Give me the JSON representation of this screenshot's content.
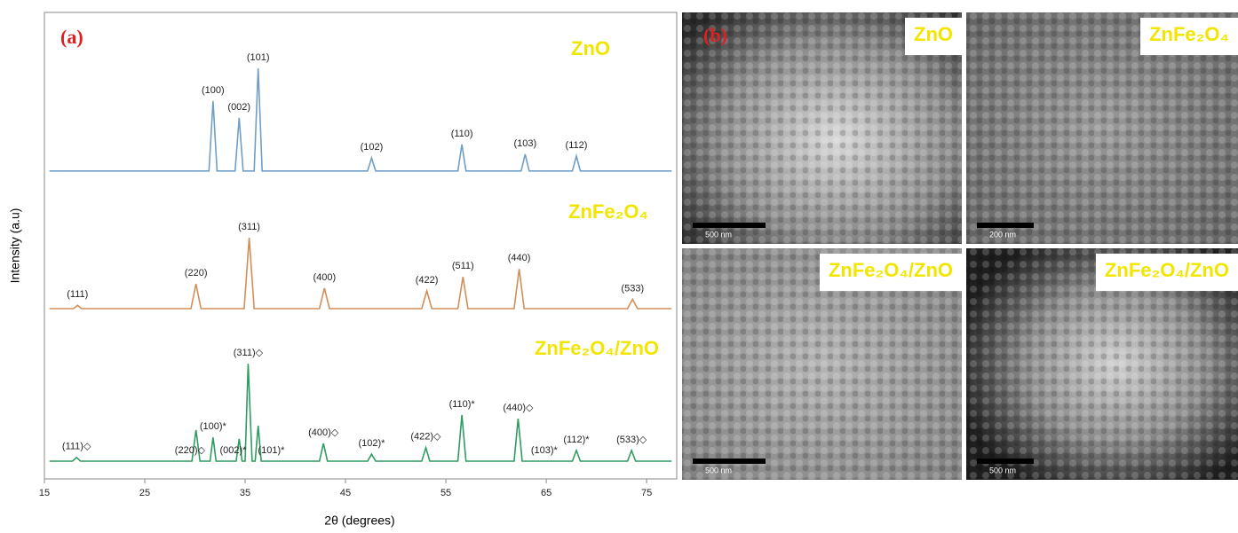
{
  "chart_data": {
    "type": "line",
    "panel_label": "(a)",
    "xlabel": "2θ (degrees)",
    "ylabel": "Intensity (a.u)",
    "xlim": [
      15,
      78
    ],
    "ylim": [
      0,
      100
    ],
    "xticks": [
      15,
      25,
      35,
      45,
      55,
      65,
      75
    ],
    "series": [
      {
        "name": "ZnO",
        "color": "#6f9fc6",
        "x": [
          15.5,
          31.4,
          31.8,
          32.2,
          34.0,
          34.4,
          34.8,
          35.9,
          36.3,
          36.7,
          47.2,
          47.6,
          48.0,
          56.2,
          56.6,
          57.0,
          62.5,
          62.9,
          63.3,
          67.6,
          68.0,
          68.4,
          77.5
        ],
        "values": [
          66,
          66,
          81,
          66,
          66,
          77.4,
          66,
          66,
          88,
          66,
          66,
          68.8,
          66,
          66,
          71.7,
          66,
          66,
          69.6,
          66,
          66,
          69.2,
          66,
          66
        ],
        "peak_labels": [
          {
            "text": "(100)",
            "x": 31.8
          },
          {
            "text": "(002)",
            "x": 34.4
          },
          {
            "text": "(101)",
            "x": 36.3
          },
          {
            "text": "(102)",
            "x": 47.6
          },
          {
            "text": "(110)",
            "x": 56.6
          },
          {
            "text": "(103)",
            "x": 62.9
          },
          {
            "text": "(112)",
            "x": 68.0
          }
        ]
      },
      {
        "name": "ZnFe₂O₄",
        "color": "#d38e58",
        "x": [
          15.5,
          17.9,
          18.3,
          18.7,
          29.6,
          30.1,
          30.6,
          34.9,
          35.4,
          35.9,
          42.4,
          42.9,
          43.4,
          52.6,
          53.1,
          53.6,
          56.2,
          56.7,
          57.2,
          61.8,
          62.3,
          62.8,
          73.1,
          73.6,
          74.1,
          77.5
        ],
        "values": [
          36.5,
          36.5,
          37.2,
          36.5,
          36.5,
          41.8,
          36.5,
          36.5,
          51.7,
          36.5,
          36.5,
          40.9,
          36.5,
          36.5,
          40.3,
          36.5,
          36.5,
          43.3,
          36.5,
          36.5,
          45,
          36.5,
          36.5,
          38.5,
          36.5,
          36.5
        ],
        "peak_labels": [
          {
            "text": "(111)",
            "x": 18.3
          },
          {
            "text": "(220)",
            "x": 30.1
          },
          {
            "text": "(311)",
            "x": 35.4
          },
          {
            "text": "(400)",
            "x": 42.9
          },
          {
            "text": "(422)",
            "x": 53.1
          },
          {
            "text": "(511)",
            "x": 56.7
          },
          {
            "text": "(440)",
            "x": 62.3
          },
          {
            "text": "(533)",
            "x": 73.6
          }
        ]
      },
      {
        "name": "ZnFe₂O₄/ZnO",
        "color": "#2f9c60",
        "x": [
          15.5,
          17.8,
          18.2,
          18.6,
          29.7,
          30.1,
          30.5,
          31.5,
          31.8,
          32.1,
          34.1,
          34.4,
          34.7,
          35.0,
          35.3,
          35.7,
          36.0,
          36.3,
          36.6,
          42.4,
          42.8,
          43.2,
          47.2,
          47.6,
          48.0,
          52.6,
          53.0,
          53.4,
          56.2,
          56.6,
          57.0,
          61.8,
          62.2,
          62.6,
          67.6,
          68.0,
          68.4,
          73.1,
          73.5,
          73.9,
          77.5
        ],
        "values": [
          3.8,
          3.8,
          4.6,
          3.8,
          3.8,
          10.5,
          3.8,
          3.8,
          8.9,
          3.8,
          3.8,
          8.6,
          3.8,
          3.8,
          24.7,
          3.8,
          3.8,
          11.4,
          3.8,
          3.8,
          7.6,
          3.8,
          3.8,
          5.3,
          3.8,
          3.8,
          6.7,
          3.8,
          3.8,
          13.7,
          3.8,
          3.8,
          12.9,
          3.8,
          3.8,
          6.1,
          3.8,
          3.8,
          6.1,
          3.8,
          3.8
        ],
        "peak_labels": [
          {
            "text": "(111)◇",
            "x": 18.2
          },
          {
            "text": "(220)◇",
            "x": 29.5
          },
          {
            "text": "(100)*",
            "x": 31.8
          },
          {
            "text": "(002)*",
            "x": 33.8
          },
          {
            "text": "(311)◇",
            "x": 35.3
          },
          {
            "text": "(101)*",
            "x": 37.6
          },
          {
            "text": "(400)◇",
            "x": 42.8
          },
          {
            "text": "(102)*",
            "x": 47.6
          },
          {
            "text": "(422)◇",
            "x": 53.0
          },
          {
            "text": "(110)*",
            "x": 56.6
          },
          {
            "text": "(440)◇",
            "x": 62.2
          },
          {
            "text": "(103)*",
            "x": 64.8
          },
          {
            "text": "(112)*",
            "x": 68.0
          },
          {
            "text": "(533)◇",
            "x": 73.5
          }
        ]
      }
    ]
  },
  "images": {
    "panel_label": "(b)",
    "items": [
      {
        "label": "ZnO",
        "scale": "500 nm"
      },
      {
        "label": "ZnFe₂O₄",
        "scale": "200 nm"
      },
      {
        "label": "ZnFe₂O₄/ZnO",
        "scale": "500 nm"
      },
      {
        "label": "ZnFe₂O₄/ZnO",
        "scale": "500 nm"
      }
    ]
  }
}
